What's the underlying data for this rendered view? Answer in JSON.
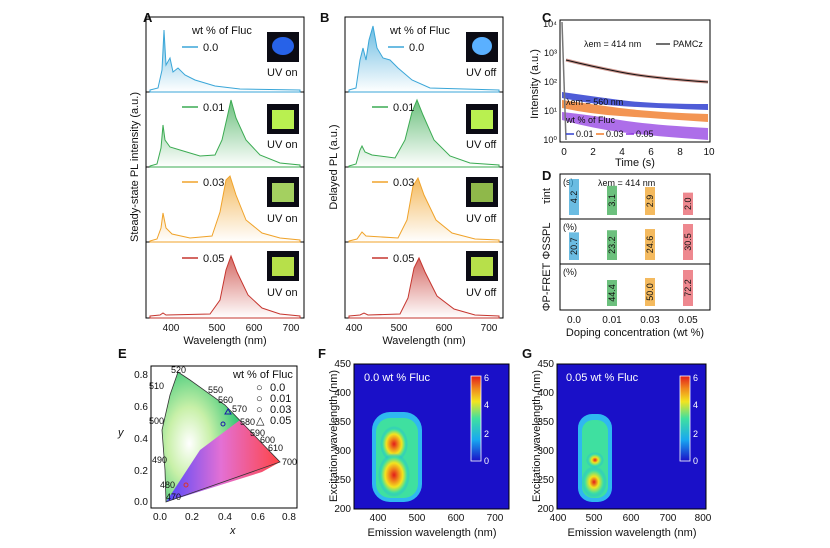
{
  "panels": {
    "A": {
      "letter": "A",
      "ylabel": "Steady-state PL intensity (a.u.)",
      "xlabel": "Wavelength (nm)",
      "legend_title": "wt % of Fluc",
      "ticks": [
        "400",
        "500",
        "600",
        "700"
      ],
      "rows": [
        {
          "label": "0.0",
          "photo": "UV on",
          "color": "#3aa6d8"
        },
        {
          "label": "0.01",
          "photo": "UV on",
          "color": "#3bab52"
        },
        {
          "label": "0.03",
          "photo": "UV on",
          "color": "#f0a32a"
        },
        {
          "label": "0.05",
          "photo": "UV on",
          "color": "#c6362f"
        }
      ]
    },
    "B": {
      "letter": "B",
      "ylabel": "Delayed PL (a.u.)",
      "xlabel": "Wavelength (nm)",
      "legend_title": "wt % of Fluc",
      "ticks": [
        "400",
        "500",
        "600",
        "700"
      ],
      "rows": [
        {
          "label": "0.0",
          "photo": "UV off",
          "color": "#3aa6d8"
        },
        {
          "label": "0.01",
          "photo": "UV off",
          "color": "#3bab52"
        },
        {
          "label": "0.03",
          "photo": "UV off",
          "color": "#f0a32a"
        },
        {
          "label": "0.05",
          "photo": "UV off",
          "color": "#c6362f"
        }
      ]
    },
    "C": {
      "letter": "C",
      "ylabel": "Intensity (a.u.)",
      "xlabel": "Time (s)",
      "ann1": "λem = 414 nm",
      "ann2": "λem = 560 nm",
      "ref_label": "PAMCz",
      "legend_title": "wt % of Fluc",
      "legend": [
        "0.01",
        "0.03",
        "0.05"
      ],
      "xticks": [
        "0",
        "2",
        "4",
        "6",
        "8",
        "10"
      ],
      "yticks": [
        "10⁰",
        "10¹",
        "10²",
        "10³",
        "10⁴"
      ]
    },
    "D": {
      "letter": "D",
      "title": "λem = 414 nm",
      "xlabel": "Doping concentration (wt %)",
      "xticks": [
        "0.0",
        "0.01",
        "0.03",
        "0.05"
      ],
      "rows": [
        {
          "name": "τint",
          "unit": "(s)",
          "values": [
            "4.2",
            "3.1",
            "2.9",
            "2.0"
          ]
        },
        {
          "name": "ΦSSPL",
          "unit": "(%)",
          "values": [
            "20.7",
            "23.2",
            "24.6",
            "30.5"
          ]
        },
        {
          "name": "ΦP-FRET",
          "unit": "(%)",
          "values": [
            "",
            "44.4",
            "50.0",
            "72.2"
          ]
        }
      ],
      "colors": [
        "#3aa6d8",
        "#3bab52",
        "#f0a32a",
        "#e8606a"
      ]
    },
    "E": {
      "letter": "E",
      "xlabel": "x",
      "ylabel": "y",
      "legend_title": "wt % of Fluc",
      "legend": [
        {
          "label": "0.0",
          "symbol": "○",
          "color": "#d9342b"
        },
        {
          "label": "0.01",
          "symbol": "○",
          "color": "#3bab52"
        },
        {
          "label": "0.03",
          "symbol": "○",
          "color": "#1a1aa8"
        },
        {
          "label": "0.05",
          "symbol": "△",
          "color": "#1a1aa8"
        }
      ],
      "xticks": [
        "0.0",
        "0.2",
        "0.4",
        "0.6",
        "0.8"
      ],
      "yticks": [
        "0.0",
        "0.2",
        "0.4",
        "0.6",
        "0.8"
      ],
      "wavelengths": [
        "520",
        "550",
        "510",
        "560",
        "570",
        "500",
        "580",
        "590",
        "600",
        "610",
        "700",
        "490",
        "480",
        "470"
      ]
    },
    "F": {
      "letter": "F",
      "title": "0.0 wt % Fluc",
      "xlabel": "Emission wavelength (nm)",
      "ylabel": "Excitation wavelength (nm)",
      "xticks": [
        "400",
        "500",
        "600",
        "700"
      ],
      "yticks": [
        "200",
        "250",
        "300",
        "350",
        "400",
        "450"
      ],
      "cbar": [
        "0",
        "2",
        "4",
        "6"
      ]
    },
    "G": {
      "letter": "G",
      "title": "0.05 wt % Fluc",
      "xlabel": "Emission wavelength (nm)",
      "ylabel": "Excitation wavelength (nm)",
      "xticks": [
        "400",
        "500",
        "600",
        "700",
        "800"
      ],
      "yticks": [
        "200",
        "250",
        "300",
        "350",
        "400",
        "450"
      ],
      "cbar": [
        "0",
        "2",
        "4",
        "6"
      ]
    }
  }
}
